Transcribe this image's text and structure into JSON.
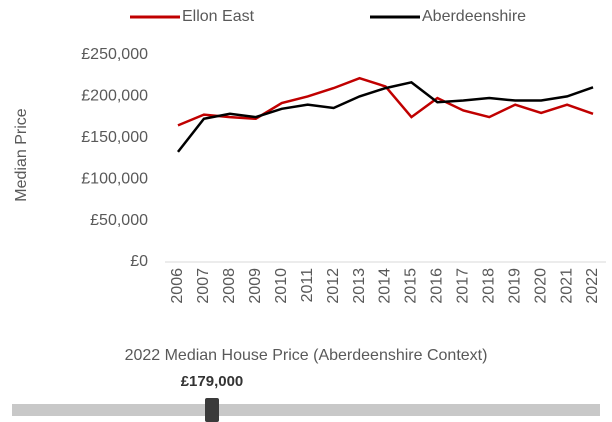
{
  "chart_data": {
    "type": "line",
    "y_axis_label": "Median Price",
    "categories": [
      "2006",
      "2007",
      "2008",
      "2009",
      "2010",
      "2011",
      "2012",
      "2013",
      "2014",
      "2015",
      "2016",
      "2017",
      "2018",
      "2019",
      "2020",
      "2021",
      "2022"
    ],
    "series": [
      {
        "name": "Ellon East",
        "color": "#c00000",
        "values": [
          165000,
          178000,
          175000,
          173000,
          192000,
          200000,
          210000,
          222000,
          212000,
          175000,
          198000,
          183000,
          175000,
          190000,
          180000,
          190000,
          179000
        ]
      },
      {
        "name": "Aberdeenshire",
        "color": "#000000",
        "values": [
          133000,
          173000,
          179000,
          175000,
          185000,
          190000,
          186000,
          200000,
          210000,
          217000,
          193000,
          195000,
          198000,
          195000,
          195000,
          200000,
          211000
        ]
      }
    ],
    "ylim": [
      0,
      250000
    ],
    "yticks": [
      {
        "value": 0,
        "label": "£0"
      },
      {
        "value": 50000,
        "label": "£50,000"
      },
      {
        "value": 100000,
        "label": "£100,000"
      },
      {
        "value": 150000,
        "label": "£150,000"
      },
      {
        "value": 200000,
        "label": "£200,000"
      },
      {
        "value": 250000,
        "label": "£250,000"
      }
    ],
    "legend": "top"
  },
  "slider": {
    "caption": "2022 Median House Price (Aberdeenshire Context)",
    "value_label": "£179,000"
  }
}
